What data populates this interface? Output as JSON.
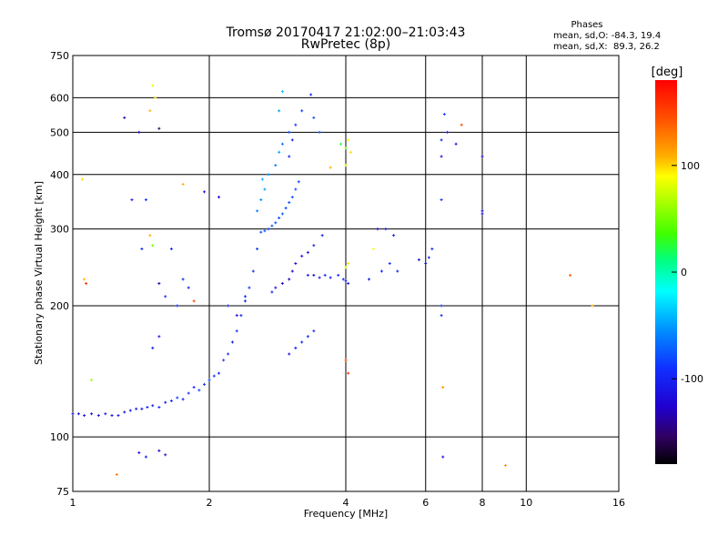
{
  "chart_data": {
    "type": "scatter",
    "title": "Tromsø 20170417 21:02:00–21:03:43",
    "subtitle": "RwPretec (8p)",
    "stats": {
      "heading": "Phases",
      "line_o": "mean, sd,O: -84.3, 19.4",
      "line_x": "mean, sd,X:  89.3, 26.2"
    },
    "xlabel": "Frequency [MHz]",
    "ylabel": "Stationary phase Virtual Height [km]",
    "x_scale": "log",
    "y_scale": "log",
    "xlim": [
      1,
      16
    ],
    "ylim": [
      75,
      750
    ],
    "x_ticks": [
      1,
      2,
      4,
      6,
      8,
      10,
      16
    ],
    "x_tick_labels": [
      "1",
      "2",
      "4",
      "6",
      "8",
      "10",
      "16"
    ],
    "y_ticks": [
      75,
      100,
      200,
      300,
      400,
      500,
      600,
      750
    ],
    "y_tick_labels": [
      "75",
      "100",
      "200",
      "300",
      "400",
      "500",
      "600",
      "750"
    ],
    "grid": true,
    "colorbar": {
      "label": "[deg]",
      "range": [
        -180,
        180
      ],
      "ticks": [
        100,
        0,
        -100
      ],
      "tick_labels": [
        "100",
        "0",
        "-100"
      ]
    },
    "series": [
      {
        "points": [
          [
            1.0,
            113,
            -110
          ],
          [
            1.03,
            113,
            -112
          ],
          [
            1.06,
            112,
            -108
          ],
          [
            1.1,
            113,
            -115
          ],
          [
            1.14,
            112,
            -110
          ],
          [
            1.18,
            113,
            -105
          ],
          [
            1.22,
            112,
            -112
          ],
          [
            1.26,
            112,
            -108
          ],
          [
            1.3,
            114,
            -110
          ],
          [
            1.34,
            115,
            -100
          ],
          [
            1.38,
            116,
            -105
          ],
          [
            1.42,
            116,
            -110
          ],
          [
            1.46,
            117,
            -95
          ],
          [
            1.5,
            118,
            -100
          ],
          [
            1.55,
            117,
            -90
          ],
          [
            1.6,
            120,
            -100
          ],
          [
            1.65,
            121,
            -95
          ],
          [
            1.7,
            123,
            -85
          ],
          [
            1.75,
            122,
            -100
          ],
          [
            1.8,
            126,
            -90
          ],
          [
            1.85,
            130,
            -95
          ],
          [
            1.9,
            128,
            -85
          ],
          [
            1.95,
            132,
            -90
          ],
          [
            2.0,
            135,
            -80
          ],
          [
            2.05,
            138,
            -90
          ],
          [
            2.1,
            140,
            -95
          ],
          [
            2.15,
            150,
            -85
          ],
          [
            2.2,
            155,
            -90
          ],
          [
            2.25,
            165,
            -100
          ],
          [
            2.3,
            175,
            -90
          ],
          [
            2.35,
            190,
            -95
          ],
          [
            2.4,
            205,
            -100
          ],
          [
            2.45,
            220,
            -90
          ],
          [
            2.5,
            240,
            -95
          ],
          [
            2.55,
            270,
            -85
          ],
          [
            2.6,
            295,
            -80
          ],
          [
            2.65,
            297,
            -75
          ],
          [
            2.7,
            300,
            -80
          ],
          [
            2.75,
            305,
            -78
          ],
          [
            2.8,
            310,
            -82
          ],
          [
            2.85,
            318,
            -80
          ],
          [
            2.9,
            325,
            -75
          ],
          [
            2.95,
            335,
            -85
          ],
          [
            3.0,
            345,
            -80
          ],
          [
            3.05,
            355,
            -78
          ],
          [
            3.1,
            370,
            -82
          ],
          [
            3.15,
            385,
            -80
          ],
          [
            2.55,
            330,
            -60
          ],
          [
            2.6,
            350,
            -55
          ],
          [
            2.65,
            370,
            -50
          ],
          [
            2.62,
            390,
            -45
          ],
          [
            2.7,
            400,
            -55
          ],
          [
            2.8,
            420,
            -60
          ],
          [
            2.85,
            450,
            -50
          ],
          [
            2.9,
            470,
            -70
          ],
          [
            3.0,
            500,
            -80
          ],
          [
            2.85,
            560,
            -50
          ],
          [
            2.9,
            620,
            -40
          ],
          [
            3.0,
            440,
            -95
          ],
          [
            3.05,
            480,
            -100
          ],
          [
            3.1,
            520,
            -90
          ],
          [
            3.2,
            560,
            -85
          ],
          [
            3.35,
            610,
            -100
          ],
          [
            3.4,
            540,
            -80
          ],
          [
            3.5,
            500,
            -75
          ],
          [
            2.75,
            215,
            -100
          ],
          [
            2.8,
            220,
            -110
          ],
          [
            2.9,
            225,
            -115
          ],
          [
            3.0,
            230,
            -125
          ],
          [
            3.05,
            240,
            -120
          ],
          [
            3.1,
            250,
            -115
          ],
          [
            3.2,
            260,
            -110
          ],
          [
            3.3,
            265,
            -105
          ],
          [
            3.4,
            275,
            -100
          ],
          [
            3.55,
            290,
            -95
          ],
          [
            3.0,
            155,
            -110
          ],
          [
            3.1,
            160,
            -105
          ],
          [
            3.2,
            165,
            -100
          ],
          [
            3.3,
            170,
            -95
          ],
          [
            3.4,
            175,
            -90
          ],
          [
            3.3,
            235,
            -100
          ],
          [
            3.4,
            235,
            -110
          ],
          [
            3.5,
            232,
            -105
          ],
          [
            3.6,
            235,
            -95
          ],
          [
            3.7,
            232,
            -100
          ],
          [
            3.85,
            235,
            -90
          ],
          [
            3.95,
            230,
            -95
          ],
          [
            4.0,
            228,
            -100
          ],
          [
            4.05,
            225,
            -105
          ],
          [
            4.0,
            460,
            50
          ],
          [
            3.9,
            470,
            20
          ],
          [
            4.05,
            480,
            90
          ],
          [
            4.0,
            420,
            70
          ],
          [
            4.1,
            450,
            100
          ],
          [
            3.7,
            415,
            110
          ],
          [
            4.0,
            245,
            80
          ],
          [
            4.05,
            250,
            100
          ],
          [
            4.0,
            150,
            150
          ],
          [
            4.05,
            140,
            160
          ],
          [
            4.5,
            230,
            -100
          ],
          [
            4.6,
            270,
            90
          ],
          [
            4.8,
            240,
            -100
          ],
          [
            5.0,
            250,
            -90
          ],
          [
            5.2,
            240,
            -100
          ],
          [
            4.7,
            300,
            -110
          ],
          [
            4.9,
            300,
            -105
          ],
          [
            5.1,
            290,
            -100
          ],
          [
            5.8,
            255,
            -110
          ],
          [
            6.0,
            250,
            -105
          ],
          [
            6.1,
            258,
            -100
          ],
          [
            6.2,
            270,
            -95
          ],
          [
            6.5,
            200,
            -90
          ],
          [
            6.5,
            190,
            -95
          ],
          [
            6.5,
            480,
            -100
          ],
          [
            6.5,
            440,
            -110
          ],
          [
            6.5,
            350,
            -90
          ],
          [
            6.6,
            550,
            -85
          ],
          [
            6.55,
            130,
            120
          ],
          [
            6.55,
            90,
            -110
          ],
          [
            6.7,
            500,
            -100
          ],
          [
            7.0,
            470,
            -110
          ],
          [
            7.2,
            520,
            150
          ],
          [
            8.0,
            440,
            -120
          ],
          [
            8.0,
            330,
            -115
          ],
          [
            8.0,
            325,
            -105
          ],
          [
            9.0,
            86,
            120
          ],
          [
            12.5,
            235,
            140
          ],
          [
            14.0,
            200,
            110
          ],
          [
            1.05,
            390,
            100
          ],
          [
            1.06,
            230,
            110
          ],
          [
            1.07,
            225,
            160
          ],
          [
            1.1,
            135,
            60
          ],
          [
            1.3,
            540,
            -130
          ],
          [
            1.4,
            500,
            -120
          ],
          [
            1.48,
            560,
            110
          ],
          [
            1.5,
            640,
            80
          ],
          [
            1.52,
            600,
            100
          ],
          [
            1.55,
            510,
            -150
          ],
          [
            1.35,
            350,
            -100
          ],
          [
            1.45,
            350,
            -90
          ],
          [
            1.42,
            270,
            -95
          ],
          [
            1.48,
            290,
            110
          ],
          [
            1.5,
            275,
            50
          ],
          [
            1.55,
            225,
            -130
          ],
          [
            1.65,
            270,
            -100
          ],
          [
            1.6,
            210,
            -90
          ],
          [
            1.75,
            230,
            -95
          ],
          [
            1.8,
            220,
            -100
          ],
          [
            1.85,
            205,
            150
          ],
          [
            1.7,
            200,
            -100
          ],
          [
            1.75,
            380,
            110
          ],
          [
            1.95,
            365,
            -110
          ],
          [
            2.1,
            355,
            -120
          ],
          [
            1.5,
            160,
            -100
          ],
          [
            1.55,
            170,
            -105
          ],
          [
            1.4,
            92,
            -110
          ],
          [
            1.45,
            90,
            -105
          ],
          [
            1.55,
            93,
            -120
          ],
          [
            1.6,
            91,
            -110
          ],
          [
            1.25,
            82,
            130
          ],
          [
            2.2,
            200,
            -100
          ],
          [
            2.3,
            190,
            -110
          ],
          [
            2.4,
            210,
            -95
          ]
        ]
      }
    ]
  }
}
